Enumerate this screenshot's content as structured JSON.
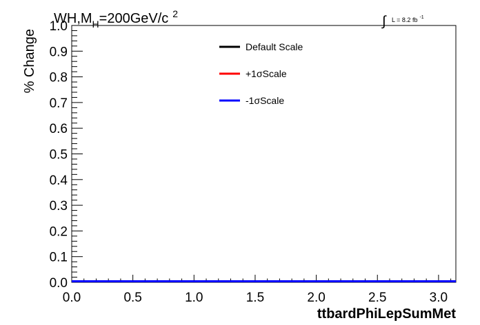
{
  "chart_data": {
    "type": "line",
    "title": {
      "prefix": "WH,M",
      "subscript": "H",
      "main": "=200GeV/c",
      "superscript": "2"
    },
    "luminosity": {
      "symbol": "∫",
      "text": "L = 8.2 fb",
      "superscript": "-1"
    },
    "xlabel": "ttbardPhiLepSumMet",
    "ylabel": "% Change",
    "xlim": [
      0.0,
      3.1416
    ],
    "ylim": [
      0.0,
      1.0
    ],
    "x_ticks": [
      "0.0",
      "0.5",
      "1.0",
      "1.5",
      "2.0",
      "2.5",
      "3.0"
    ],
    "x_tick_values": [
      0.0,
      0.5,
      1.0,
      1.5,
      2.0,
      2.5,
      3.0
    ],
    "y_ticks": [
      "0.0",
      "0.1",
      "0.2",
      "0.3",
      "0.4",
      "0.5",
      "0.6",
      "0.7",
      "0.8",
      "0.9",
      "1.0"
    ],
    "y_tick_values": [
      0.0,
      0.1,
      0.2,
      0.3,
      0.4,
      0.5,
      0.6,
      0.7,
      0.8,
      0.9,
      1.0
    ],
    "grid": false,
    "legend_position": "top-center",
    "series": [
      {
        "name": "Default Scale",
        "color": "#000000",
        "x": [
          0.0,
          3.1416
        ],
        "y": [
          0.0,
          0.0
        ]
      },
      {
        "name": "+1σScale",
        "color": "#ff0000",
        "x": [
          0.0,
          3.1416
        ],
        "y": [
          0.0,
          0.0
        ]
      },
      {
        "name": "-1σScale",
        "color": "#0000ff",
        "x": [
          0.0,
          3.1416
        ],
        "y": [
          0.0,
          0.0
        ]
      }
    ]
  }
}
